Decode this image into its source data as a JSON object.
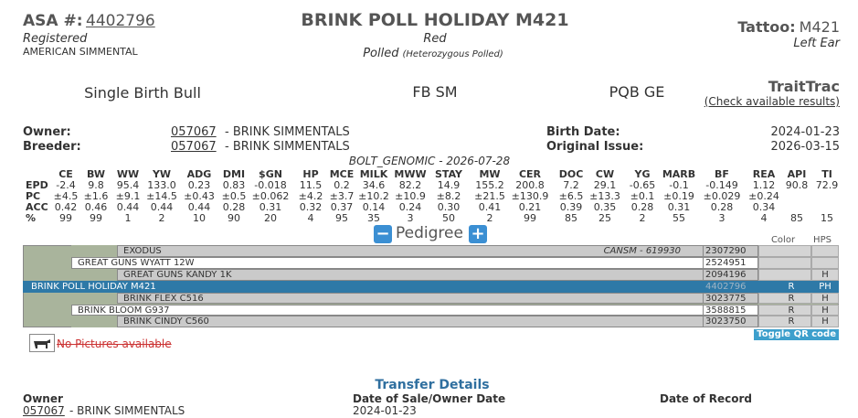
{
  "header": {
    "asa_label": "ASA #:",
    "asa_number": "4402796",
    "status": "Registered",
    "breed": "AMERICAN SIMMENTAL",
    "name": "BRINK POLL HOLIDAY M421",
    "color": "Red",
    "polled": "Polled",
    "polled_detail": "(Heterozygous Polled)",
    "tattoo_label": "Tattoo:",
    "tattoo": "M421",
    "tattoo_location": "Left Ear"
  },
  "info": {
    "birth_type": "Single Birth Bull",
    "breed_code": "FB SM",
    "tests": "PQB GE",
    "traittrac": "TraitTrac",
    "traittrac_link": "(Check available results)"
  },
  "ownership": {
    "owner_label": "Owner:",
    "owner_id": "057067",
    "owner_name": "- BRINK SIMMENTALS",
    "breeder_label": "Breeder:",
    "breeder_id": "057067",
    "breeder_name": "- BRINK SIMMENTALS",
    "birth_label": "Birth Date:",
    "birth_date": "2024-01-23",
    "issue_label": "Original Issue:",
    "issue_date": "2026-03-15"
  },
  "epd": {
    "title": "BOLT_GENOMIC - 2026-07-28",
    "columns": [
      "CE",
      "BW",
      "WW",
      "YW",
      "ADG",
      "DMI",
      "$GN",
      "HP",
      "MCE",
      "MILK",
      "MWW",
      "STAY",
      "MW",
      "CER",
      "DOC",
      "CW",
      "YG",
      "MARB",
      "BF",
      "REA",
      "API",
      "TI"
    ],
    "rows": [
      {
        "label": "EPD",
        "values": [
          "-2.4",
          "9.8",
          "95.4",
          "133.0",
          "0.23",
          "0.83",
          "-0.018",
          "11.5",
          "0.2",
          "34.6",
          "82.2",
          "14.9",
          "155.2",
          "200.8",
          "7.2",
          "29.1",
          "-0.65",
          "-0.1",
          "-0.149",
          "1.12",
          "90.8",
          "72.9"
        ]
      },
      {
        "label": "PC",
        "values": [
          "±4.5",
          "±1.6",
          "±9.1",
          "±14.5",
          "±0.43",
          "±0.5",
          "±0.062",
          "±4.2",
          "±3.7",
          "±10.2",
          "±10.9",
          "±8.2",
          "±21.5",
          "±130.9",
          "±6.5",
          "±13.3",
          "±0.1",
          "±0.19",
          "±0.029",
          "±0.24"
        ]
      },
      {
        "label": "ACC",
        "values": [
          "0.42",
          "0.46",
          "0.44",
          "0.44",
          "0.44",
          "0.28",
          "0.31",
          "0.32",
          "0.37",
          "0.14",
          "0.24",
          "0.30",
          "0.41",
          "0.21",
          "0.39",
          "0.35",
          "0.28",
          "0.31",
          "0.28",
          "0.34"
        ]
      },
      {
        "label": "%",
        "values": [
          "99",
          "99",
          "1",
          "2",
          "10",
          "90",
          "20",
          "4",
          "95",
          "35",
          "3",
          "50",
          "2",
          "99",
          "85",
          "25",
          "2",
          "55",
          "3",
          "4",
          "85",
          "15"
        ]
      }
    ]
  },
  "pedigree": {
    "title": "Pedigree",
    "color_header": "Color",
    "hps_header": "HPS",
    "rows": [
      {
        "name": "EXODUS",
        "extra": "CANSM - 619930",
        "reg": "2307290"
      },
      {
        "name": "GREAT GUNS WYATT 12W",
        "reg": "2524951"
      },
      {
        "name": "GREAT GUNS KANDY 1K",
        "reg": "2094196",
        "hps": "H"
      },
      {
        "name": "BRINK POLL HOLIDAY M421",
        "reg": "4402796",
        "color": "R",
        "hps": "PH"
      },
      {
        "name": "BRINK FLEX C516",
        "reg": "3023775",
        "color": "R",
        "hps": "H"
      },
      {
        "name": "BRINK BLOOM G937",
        "reg": "3588815",
        "color": "R",
        "hps": "H"
      },
      {
        "name": "BRINK CINDY C560",
        "reg": "3023750",
        "color": "R",
        "hps": "H"
      }
    ]
  },
  "pictures": {
    "message": "No Pictures available",
    "qr_button": "Toggle QR code"
  },
  "transfer": {
    "title": "Transfer Details",
    "owner_header": "Owner",
    "sale_header": "Date of Sale/Owner Date",
    "record_header": "Date of Record",
    "owner_id": "057067",
    "owner_name": "- BRINK SIMMENTALS",
    "sale_date": "2024-01-23"
  }
}
